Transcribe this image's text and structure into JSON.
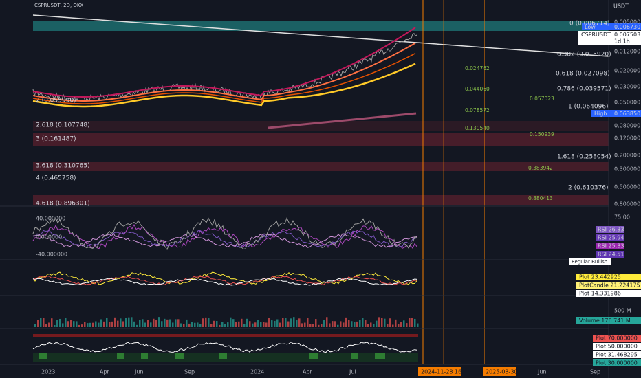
{
  "header": {
    "symbol": "CSPRUSDT, 2D, OKX",
    "currency": "USDT"
  },
  "price_axis": [
    "0.005000",
    "0.012000",
    "0.020000",
    "0.030000",
    "0.050000",
    "0.080000",
    "0.120000",
    "0.200000",
    "0.300000",
    "0.500000",
    "0.800000"
  ],
  "price_tags": {
    "low_label": "Low",
    "low_value": "0.006730",
    "symbol": "CSPRUSDT",
    "last_price": "0.007503",
    "countdown": "1d 1h",
    "high_label": "High",
    "high_value": "0.063850"
  },
  "fib_right": [
    "0 (0.006714)",
    "0.382 (0.015920)",
    "0.618 (0.027098)",
    "0.786 (0.039571)",
    "1 (0.064096)",
    "1.618 (0.258054)",
    "2 (0.610376)"
  ],
  "fib_left": [
    "2 (0.055990)",
    "2.618 (0.107748)",
    "3 (0.161487)",
    "3.618 (0.310765)",
    "4 (0.465758)",
    "4.618 (0.896301)"
  ],
  "projections": [
    "0.024762",
    "0.044060",
    "0.078572",
    "0.130540",
    "0.057023",
    "0.150939",
    "0.383942",
    "0.880413"
  ],
  "rsi_pane": {
    "axis": [
      "40.000000",
      "0.000000",
      "-40.000000"
    ],
    "level": "75.00",
    "tags": [
      "RSI 26.33",
      "RSI 25.94",
      "RSI 25.33",
      "RSI 24.51"
    ],
    "signal": "Regular Bullish"
  },
  "plot_pane": {
    "tags": [
      "Plot 23.442925",
      "PlotCandle 21.224175",
      "Plot 14.331986"
    ]
  },
  "volume_pane": {
    "axis": "500 M",
    "tag": "Volume 176.741 M"
  },
  "osc_pane": {
    "tags": [
      "Plot 70.000000",
      "Plot 50.000000",
      "Plot 31.468295",
      "Plot 30.000000"
    ]
  },
  "time_axis": {
    "labels": [
      "2023",
      "Apr",
      "Jun",
      "Sep",
      "2024",
      "Apr",
      "Jul",
      "Jun",
      "Sep"
    ],
    "cursor_tags": [
      "2024-11-28 16",
      "2025-03-30"
    ]
  }
}
